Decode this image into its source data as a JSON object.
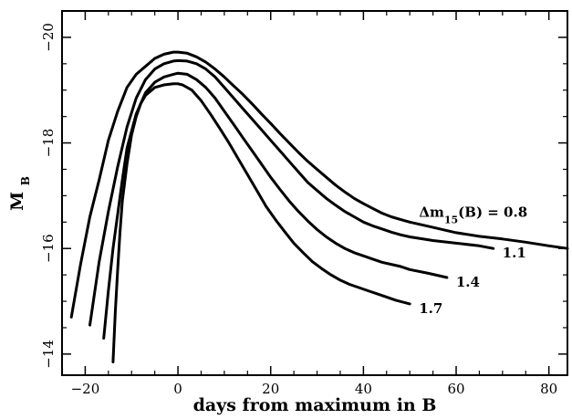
{
  "chart_data": {
    "type": "line",
    "xlabel": "days from maximum in B",
    "ylabel": "M",
    "ylabel_sub": "B",
    "xlim": [
      -25,
      84
    ],
    "ylim": [
      -13.6,
      -20.5
    ],
    "y_inverted": true,
    "x_ticks": [
      -20,
      0,
      20,
      40,
      60,
      80
    ],
    "x_tick_labels": [
      "−20",
      "0",
      "20",
      "40",
      "60",
      "80"
    ],
    "y_ticks": [
      -20,
      -18,
      -16,
      -14
    ],
    "y_tick_labels": [
      "−20",
      "−18",
      "−16",
      "−14"
    ],
    "grid": false,
    "series": [
      {
        "name": "Δm15(B) = 0.8",
        "label_main": "Δm",
        "label_sub": "15",
        "label_tail": "(B) = 0.8",
        "color": "#000000",
        "x": [
          -23,
          -21,
          -19,
          -17,
          -15,
          -13,
          -11,
          -9,
          -7,
          -5,
          -3,
          -1,
          0,
          2,
          4,
          6,
          8,
          10,
          12,
          14,
          16,
          18,
          20,
          22,
          24,
          26,
          28,
          30,
          32,
          34,
          36,
          38,
          40,
          42,
          44,
          46,
          48,
          50,
          55,
          60,
          65,
          70,
          75,
          80,
          84
        ],
        "y": [
          -14.7,
          -15.7,
          -16.6,
          -17.3,
          -18.05,
          -18.6,
          -19.05,
          -19.3,
          -19.45,
          -19.6,
          -19.68,
          -19.72,
          -19.72,
          -19.7,
          -19.63,
          -19.53,
          -19.4,
          -19.25,
          -19.08,
          -18.92,
          -18.74,
          -18.55,
          -18.37,
          -18.18,
          -18.0,
          -17.82,
          -17.65,
          -17.5,
          -17.35,
          -17.2,
          -17.07,
          -16.95,
          -16.85,
          -16.76,
          -16.67,
          -16.6,
          -16.55,
          -16.5,
          -16.4,
          -16.3,
          -16.23,
          -16.18,
          -16.12,
          -16.05,
          -16.0
        ]
      },
      {
        "name": "1.1",
        "label_main": "1.1",
        "color": "#000000",
        "x": [
          -19,
          -17,
          -15,
          -13,
          -11,
          -9,
          -7,
          -5,
          -3,
          -1,
          0,
          2,
          4,
          6,
          8,
          10,
          12,
          14,
          16,
          18,
          20,
          22,
          24,
          26,
          28,
          30,
          32,
          34,
          36,
          38,
          40,
          42,
          44,
          46,
          48,
          50,
          55,
          60,
          65,
          68
        ],
        "y": [
          -14.55,
          -15.75,
          -16.7,
          -17.55,
          -18.3,
          -18.85,
          -19.2,
          -19.4,
          -19.5,
          -19.55,
          -19.56,
          -19.55,
          -19.5,
          -19.4,
          -19.25,
          -19.05,
          -18.85,
          -18.65,
          -18.45,
          -18.25,
          -18.05,
          -17.85,
          -17.65,
          -17.45,
          -17.25,
          -17.1,
          -16.95,
          -16.82,
          -16.7,
          -16.6,
          -16.5,
          -16.43,
          -16.37,
          -16.31,
          -16.26,
          -16.22,
          -16.15,
          -16.1,
          -16.05,
          -16.0
        ]
      },
      {
        "name": "1.4",
        "label_main": "1.4",
        "color": "#000000",
        "x": [
          -16,
          -15,
          -14,
          -13,
          -12,
          -11,
          -9,
          -7,
          -5,
          -3,
          -1,
          0,
          2,
          4,
          6,
          8,
          10,
          12,
          14,
          16,
          18,
          20,
          22,
          24,
          26,
          28,
          30,
          32,
          34,
          36,
          38,
          40,
          42,
          44,
          46,
          48,
          50,
          54,
          58
        ],
        "y": [
          -14.3,
          -15.2,
          -16.0,
          -16.65,
          -17.3,
          -17.9,
          -18.55,
          -18.95,
          -19.15,
          -19.25,
          -19.3,
          -19.32,
          -19.3,
          -19.2,
          -19.05,
          -18.85,
          -18.6,
          -18.35,
          -18.1,
          -17.85,
          -17.6,
          -17.35,
          -17.12,
          -16.9,
          -16.7,
          -16.52,
          -16.36,
          -16.22,
          -16.1,
          -16.0,
          -15.92,
          -15.86,
          -15.8,
          -15.74,
          -15.7,
          -15.66,
          -15.6,
          -15.53,
          -15.45
        ]
      },
      {
        "name": "1.7",
        "label_main": "1.7",
        "color": "#000000",
        "x": [
          -14,
          -13.5,
          -13,
          -12.5,
          -12,
          -11,
          -10,
          -9,
          -8,
          -7,
          -5,
          -3,
          -1,
          0,
          1,
          3,
          5,
          7,
          9,
          11,
          13,
          15,
          17,
          19,
          21,
          23,
          25,
          27,
          29,
          31,
          33,
          35,
          37,
          39,
          41,
          43,
          45,
          47,
          50
        ],
        "y": [
          -13.85,
          -14.8,
          -15.6,
          -16.3,
          -16.9,
          -17.6,
          -18.15,
          -18.5,
          -18.75,
          -18.9,
          -19.05,
          -19.1,
          -19.12,
          -19.12,
          -19.1,
          -19.0,
          -18.8,
          -18.55,
          -18.28,
          -18.0,
          -17.7,
          -17.4,
          -17.1,
          -16.8,
          -16.55,
          -16.32,
          -16.1,
          -15.92,
          -15.75,
          -15.62,
          -15.5,
          -15.4,
          -15.32,
          -15.26,
          -15.2,
          -15.14,
          -15.08,
          -15.02,
          -14.95
        ]
      }
    ]
  }
}
